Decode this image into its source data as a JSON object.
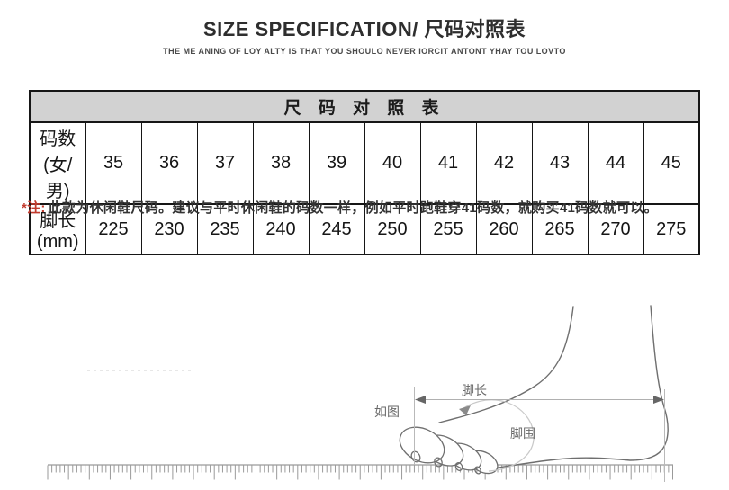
{
  "header": {
    "title": "SIZE SPECIFICATION/ 尺码对照表",
    "subtitle": "THE ME ANING OF LOY ALTY IS THAT YOU SHOULO NEVER IORCIT ANTONT YHAY TOU LOVTO"
  },
  "size_table": {
    "caption": "尺 码 对 照 表",
    "rows": [
      {
        "label": "码数(女/男)",
        "values": [
          "35",
          "36",
          "37",
          "38",
          "39",
          "40",
          "41",
          "42",
          "43",
          "44",
          "45"
        ]
      },
      {
        "label": "脚长(mm)",
        "values": [
          "225",
          "230",
          "235",
          "240",
          "245",
          "250",
          "255",
          "260",
          "265",
          "270",
          "275"
        ]
      }
    ]
  },
  "note": {
    "prefix": "*注:",
    "body": "此款为休闲鞋尺码。建议与平时休闲鞋的码数一样，例如平时跑鞋穿41码数，就购买41码数就可以。"
  },
  "diagram": {
    "labels": {
      "as_shown": "如图",
      "foot_length": "脚长",
      "foot_girth": "脚围"
    }
  },
  "colors": {
    "note_red": "#c23b2e",
    "table_header_bg": "#d2d2d2",
    "foot_line": "#6f6f6f",
    "measure_line": "#b0b0b0",
    "ruler": "#9a9a9a"
  }
}
